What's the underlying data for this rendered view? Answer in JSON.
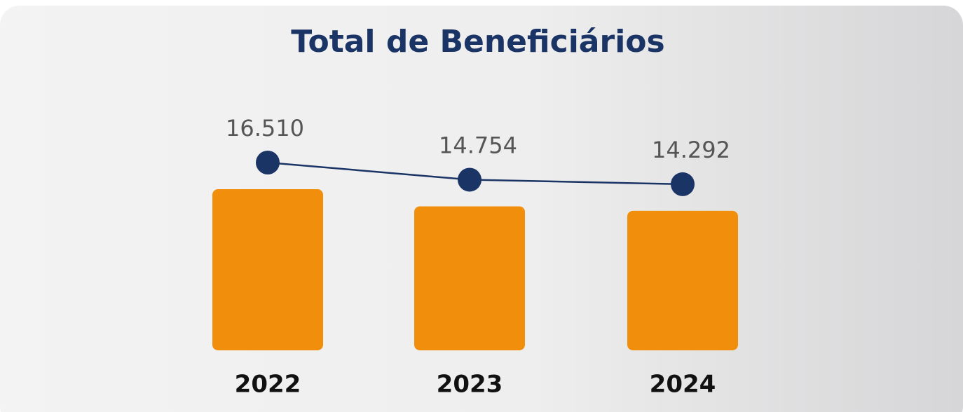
{
  "chart_data": {
    "type": "bar",
    "title": "Total de Beneficiários",
    "categories": [
      "2022",
      "2023",
      "2024"
    ],
    "values": [
      16510,
      14754,
      14292
    ],
    "value_labels": [
      "16.510",
      "14.754",
      "14.292"
    ],
    "color": "#f18f0d",
    "line_color": "#1b3466"
  }
}
